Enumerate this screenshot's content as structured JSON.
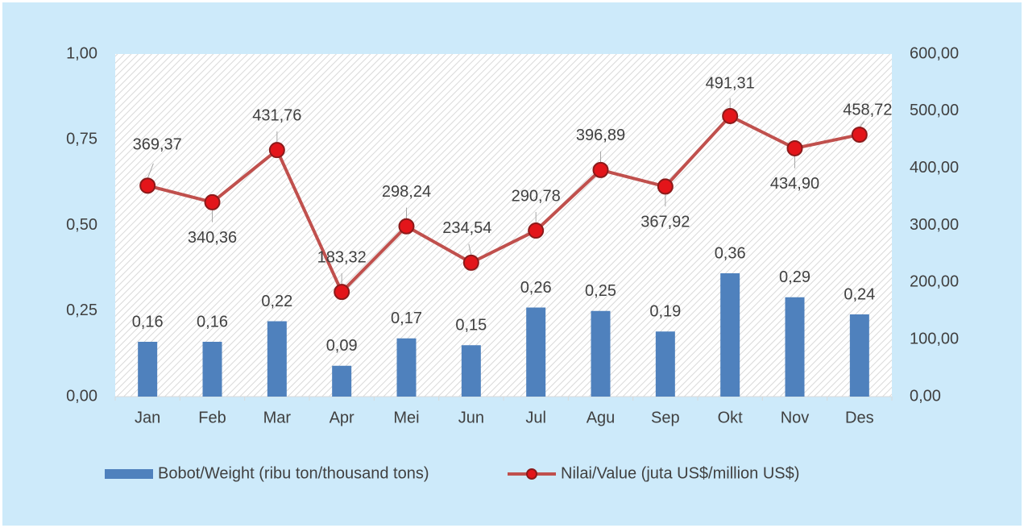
{
  "chart_data": {
    "type": "combo",
    "categories": [
      "Jan",
      "Feb",
      "Mar",
      "Apr",
      "Mei",
      "Jun",
      "Jul",
      "Agu",
      "Sep",
      "Okt",
      "Nov",
      "Des"
    ],
    "series": [
      {
        "name": "Bobot/Weight (ribu ton/thousand tons)",
        "type": "bar",
        "color": "#4f81bd",
        "values": [
          0.16,
          0.16,
          0.22,
          0.09,
          0.17,
          0.15,
          0.26,
          0.25,
          0.19,
          0.36,
          0.29,
          0.24
        ],
        "value_labels": [
          "0,16",
          "0,16",
          "0,22",
          "0,09",
          "0,17",
          "0,15",
          "0,26",
          "0,25",
          "0,19",
          "0,36",
          "0,29",
          "0,24"
        ]
      },
      {
        "name": "Nilai/Value (juta US$/million US$)",
        "type": "line",
        "axis": "y2",
        "color": "#c0504d",
        "values": [
          369.37,
          340.36,
          431.76,
          183.32,
          298.24,
          234.54,
          290.78,
          396.89,
          367.92,
          491.31,
          434.9,
          458.72
        ],
        "value_labels": [
          "369,37",
          "340,36",
          "431,76",
          "183,32",
          "298,24",
          "234,54",
          "290,78",
          "396,89",
          "367,92",
          "491,31",
          "434,90",
          "458,72"
        ]
      }
    ],
    "ylim": [
      0,
      1
    ],
    "yticks": [
      {
        "value": 0,
        "label": "0,00"
      },
      {
        "value": 0.25,
        "label": "0,25"
      },
      {
        "value": 0.5,
        "label": "0,50"
      },
      {
        "value": 0.75,
        "label": "0,75"
      },
      {
        "value": 1,
        "label": "1,00"
      }
    ],
    "y2lim": [
      0,
      600
    ],
    "y2ticks": [
      {
        "value": 0,
        "label": "0,00"
      },
      {
        "value": 100,
        "label": "100,00"
      },
      {
        "value": 200,
        "label": "200,00"
      },
      {
        "value": 300,
        "label": "300,00"
      },
      {
        "value": 400,
        "label": "400,00"
      },
      {
        "value": 500,
        "label": "500,00"
      },
      {
        "value": 600,
        "label": "600,00"
      }
    ],
    "legend": "bottom"
  }
}
